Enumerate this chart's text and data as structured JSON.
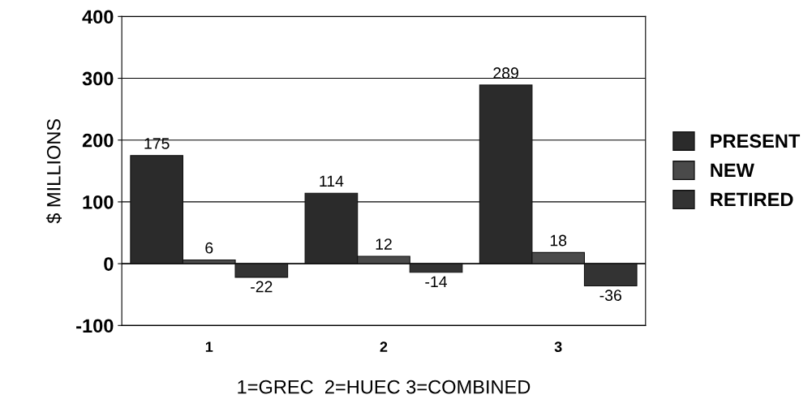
{
  "chart_data": {
    "type": "bar",
    "categories": [
      "1",
      "2",
      "3"
    ],
    "xlabel": "1=GREC  2=HUEC 3=COMBINED",
    "ylabel": "$ MILLIONS",
    "series": [
      {
        "name": "PRESENT",
        "color": "#2b2b2b",
        "values": [
          175,
          114,
          289
        ]
      },
      {
        "name": "NEW",
        "color": "#4a4a4a",
        "values": [
          6,
          12,
          18
        ]
      },
      {
        "name": "RETIRED",
        "color": "#333333",
        "values": [
          -22,
          -14,
          -36
        ]
      }
    ],
    "ylim": [
      -100,
      400
    ],
    "yticks": [
      -100,
      0,
      100,
      200,
      300,
      400
    ],
    "grid": "y",
    "legend": "right",
    "data_labels": true
  }
}
